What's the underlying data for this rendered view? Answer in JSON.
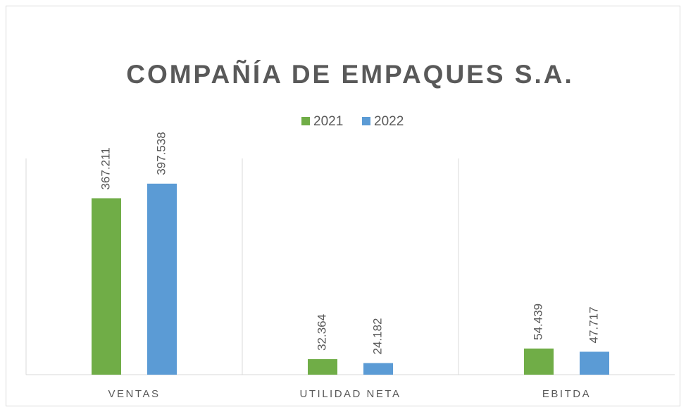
{
  "chart_data": {
    "type": "bar",
    "title": "COMPAÑÍA DE EMPAQUES S.A.",
    "categories": [
      "VENTAS",
      "UTILIDAD NETA",
      "EBITDA"
    ],
    "series": [
      {
        "name": "2021",
        "color": "#70ad47",
        "values": [
          367211,
          32364,
          54439
        ],
        "value_labels": [
          "367.211",
          "32.364",
          "54.439"
        ]
      },
      {
        "name": "2022",
        "color": "#5b9bd5",
        "values": [
          397538,
          24182,
          47717
        ],
        "value_labels": [
          "397.538",
          "24.182",
          "47.717"
        ]
      }
    ],
    "ylim": [
      0,
      450000
    ],
    "legend": "top"
  }
}
